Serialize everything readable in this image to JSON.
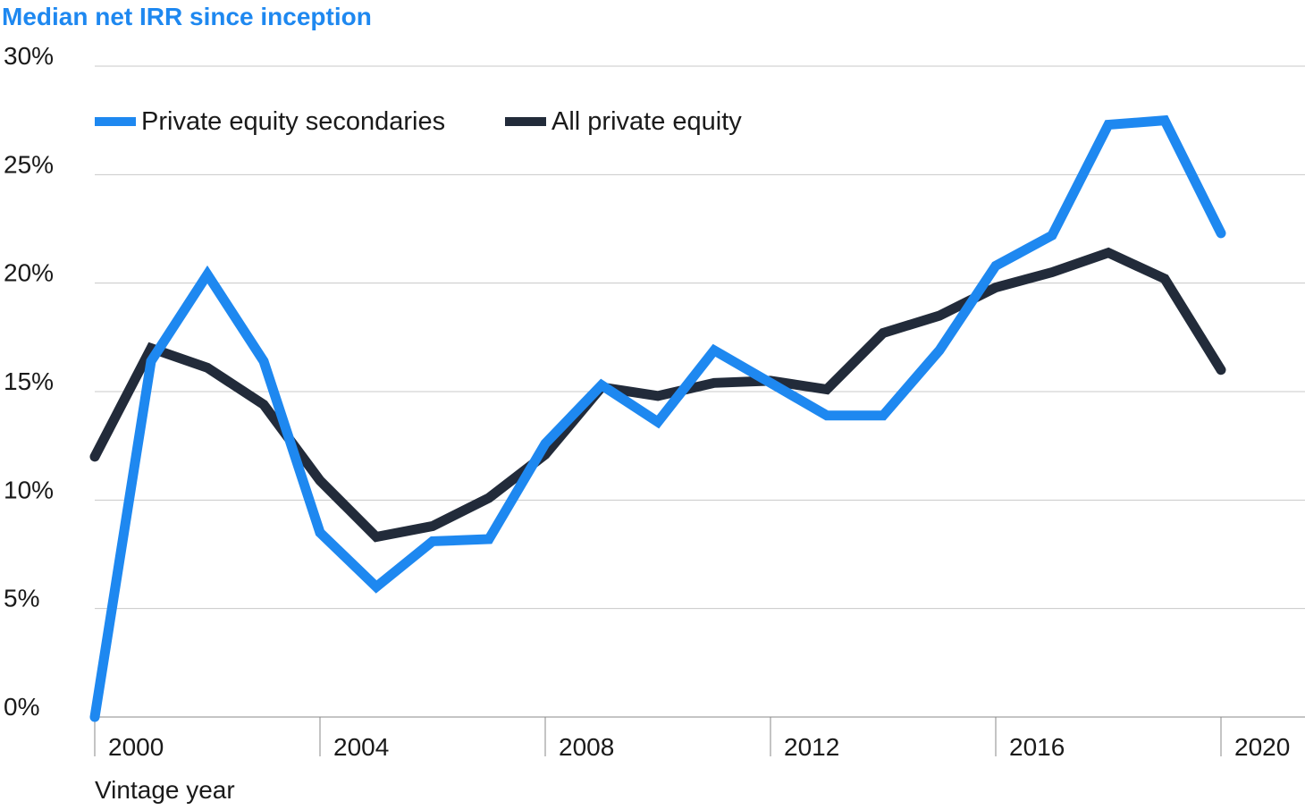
{
  "chart_data": {
    "type": "line",
    "title": "Median net IRR since inception",
    "xlabel": "Vintage year",
    "ylabel": "",
    "ylim": [
      0,
      30
    ],
    "y_ticks": [
      0,
      5,
      10,
      15,
      20,
      25,
      30
    ],
    "y_tick_labels": [
      "0%",
      "5%",
      "10%",
      "15%",
      "20%",
      "25%",
      "30%"
    ],
    "x_ticks": [
      2000,
      2004,
      2008,
      2012,
      2016,
      2020
    ],
    "x_tick_labels": [
      "2000",
      "2004",
      "2008",
      "2012",
      "2016",
      "2020"
    ],
    "x": [
      2000,
      2001,
      2002,
      2003,
      2004,
      2005,
      2006,
      2007,
      2008,
      2009,
      2010,
      2011,
      2012,
      2013,
      2014,
      2015,
      2016,
      2017,
      2018,
      2019,
      2020
    ],
    "legend_position": "top-left",
    "grid": "horizontal",
    "series": [
      {
        "name": "Private equity secondaries",
        "color": "#1e88f0",
        "values": [
          0.0,
          16.4,
          20.4,
          16.4,
          8.5,
          6.0,
          8.1,
          8.2,
          12.6,
          15.3,
          13.6,
          16.9,
          15.4,
          13.9,
          13.9,
          16.9,
          20.8,
          22.2,
          27.3,
          27.5,
          22.3
        ]
      },
      {
        "name": "All private equity",
        "color": "#222b3a",
        "values": [
          12.0,
          17.0,
          16.1,
          14.4,
          10.9,
          8.3,
          8.8,
          10.1,
          12.1,
          15.2,
          14.8,
          15.4,
          15.5,
          15.1,
          17.7,
          18.5,
          19.8,
          20.5,
          21.4,
          20.2,
          16.0
        ]
      }
    ]
  }
}
